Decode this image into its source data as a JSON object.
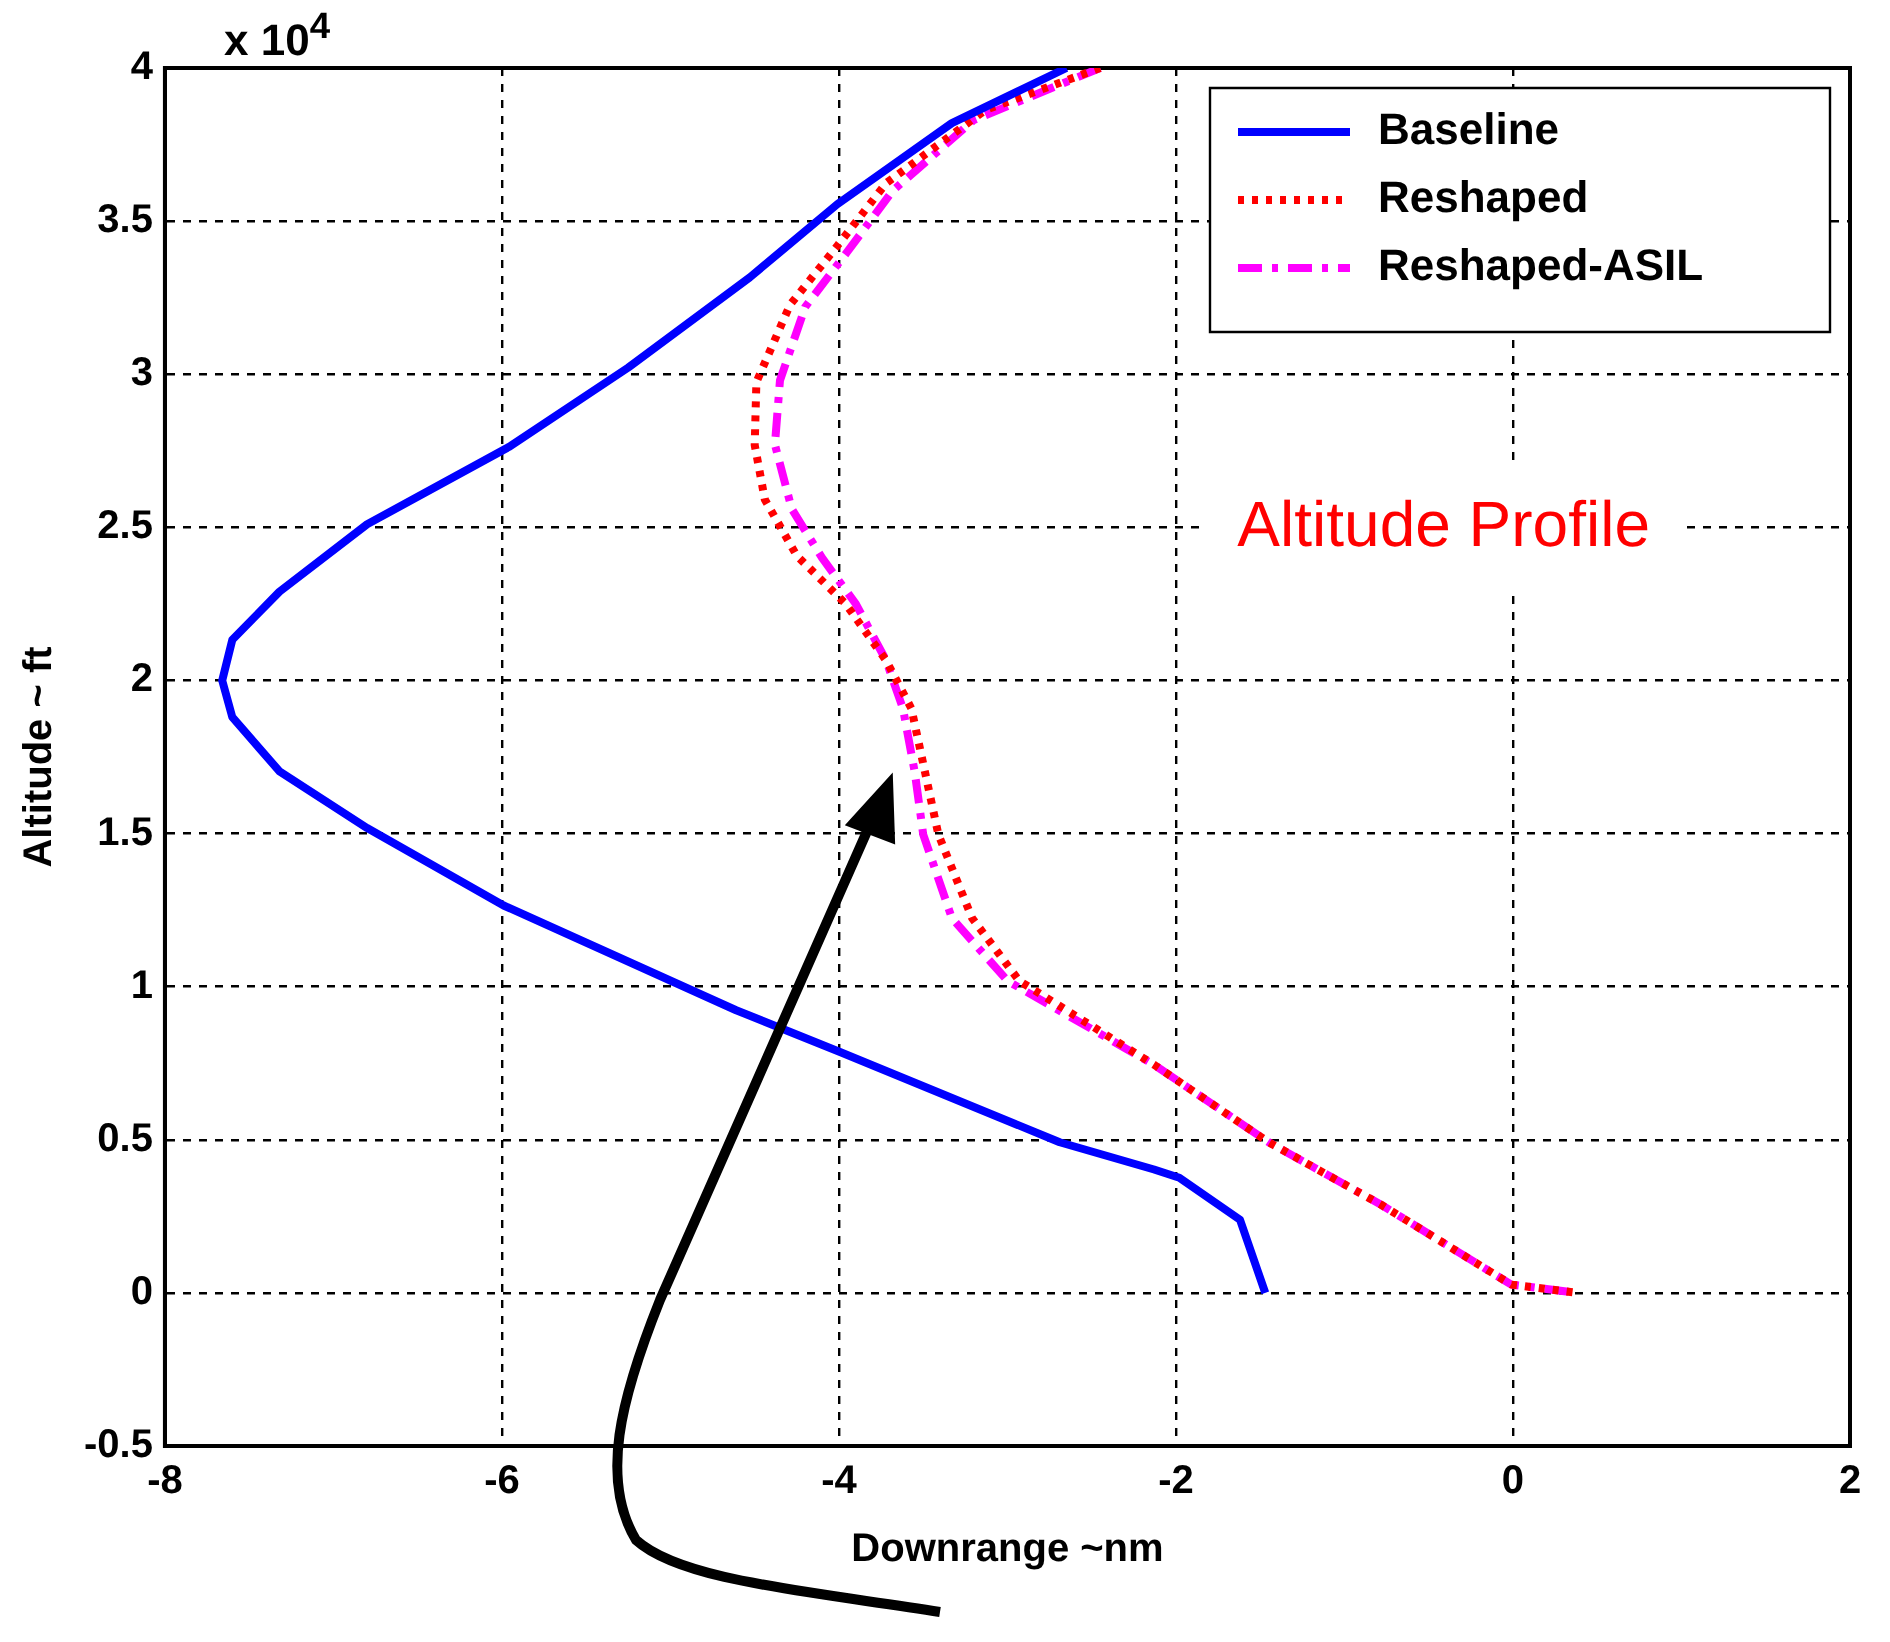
{
  "chart_data": {
    "type": "line",
    "xlabel": "Downrange ~nm",
    "ylabel": "Altitude ~ ft",
    "annotations": [
      "x 10$^{4}$",
      "Altitude Profile"
    ],
    "xlim": [
      -8,
      2
    ],
    "xticks": [
      -8,
      -6,
      -4,
      -2,
      0,
      2
    ],
    "ylim": [
      -0.5,
      4
    ],
    "yticks": [
      -0.5,
      0,
      0.5,
      1,
      1.5,
      2,
      2.5,
      3,
      3.5,
      4
    ],
    "grid": true,
    "legend": "top right",
    "marker": "none",
    "series": [
      {
        "name": "Baseline",
        "color": "#0000ff",
        "line_style": "solid",
        "x": [
          -2.65,
          -3.33,
          -4.01,
          -4.53,
          -5.25,
          -5.96,
          -6.8,
          -7.32,
          -7.6,
          -7.66,
          -7.6,
          -7.32,
          -6.8,
          -5.99,
          -4.61,
          -3.99,
          -2.69,
          -2.13,
          -1.98,
          -1.62,
          -1.47
        ],
        "values": [
          4,
          3.82,
          3.555,
          3.316,
          3.022,
          2.762,
          2.51,
          2.29,
          2.133,
          2,
          1.88,
          1.703,
          1.518,
          1.265,
          0.923,
          0.786,
          0.492,
          0.403,
          0.376,
          0.239,
          0
        ]
      },
      {
        "name": "Reshaped",
        "color": "#ff0000",
        "line_style": "dotted",
        "x": [
          -2.45,
          -3.13,
          -3.72,
          -4.01,
          -4.29,
          -4.49,
          -4.5,
          -4.44,
          -4.25,
          -3.96,
          -3.72,
          -3.57,
          -3.41,
          -3.21,
          -2.93,
          -2.13,
          -1.45,
          -0.78,
          -0.01,
          0.38
        ],
        "values": [
          4,
          3.863,
          3.624,
          3.419,
          3.227,
          2.974,
          2.769,
          2.591,
          2.407,
          2.25,
          2.065,
          1.908,
          1.497,
          1.224,
          1.019,
          0.745,
          0.492,
          0.287,
          0.027,
          0
        ]
      },
      {
        "name": "Reshaped-ASIL",
        "color": "#ff00ff",
        "line_style": "dashed",
        "x": [
          -2.45,
          -3.2,
          -3.68,
          -3.95,
          -4.2,
          -4.35,
          -4.38,
          -4.28,
          -4.1,
          -3.9,
          -3.72,
          -3.62,
          -3.55,
          -3.5,
          -3.33,
          -3.0,
          -2.13,
          -1.45,
          -0.78,
          -0.01,
          0.38
        ],
        "values": [
          4,
          3.83,
          3.6,
          3.4,
          3.22,
          2.98,
          2.77,
          2.56,
          2.4,
          2.25,
          2.065,
          1.908,
          1.7,
          1.497,
          1.224,
          1.019,
          0.745,
          0.492,
          0.287,
          0.027,
          0
        ]
      }
    ]
  }
}
